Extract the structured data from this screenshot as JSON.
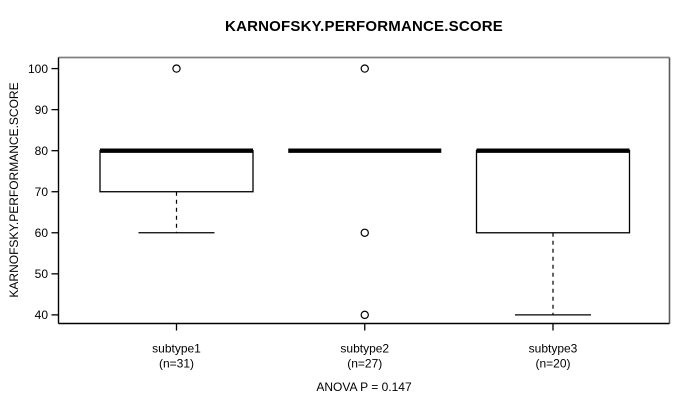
{
  "chart_data": {
    "type": "boxplot",
    "title": "KARNOFSKY.PERFORMANCE.SCORE",
    "ylabel": "KARNOFSKY.PERFORMANCE.SCORE",
    "footer": "ANOVA P = 0.147",
    "ylim": [
      40,
      100
    ],
    "yticks": [
      40,
      50,
      60,
      70,
      80,
      90,
      100
    ],
    "grid": false,
    "legend": "none",
    "groups": [
      {
        "label": "subtype1",
        "sublabel": "(n=31)",
        "n": 31,
        "median": 80,
        "q1": 70,
        "q3": 80,
        "whisker_low": 60,
        "whisker_high": 80,
        "outliers": [
          100
        ]
      },
      {
        "label": "subtype2",
        "sublabel": "(n=27)",
        "n": 27,
        "median": 80,
        "q1": 80,
        "q3": 80,
        "whisker_low": 80,
        "whisker_high": 80,
        "outliers": [
          100,
          60,
          40
        ]
      },
      {
        "label": "subtype3",
        "sublabel": "(n=20)",
        "n": 20,
        "median": 80,
        "q1": 60,
        "q3": 80,
        "whisker_low": 40,
        "whisker_high": 80,
        "outliers": []
      }
    ],
    "colors": {
      "ink": "#000000",
      "frame_top": "#808080",
      "frame_right": "#5a5a5a",
      "background": "#ffffff"
    }
  }
}
